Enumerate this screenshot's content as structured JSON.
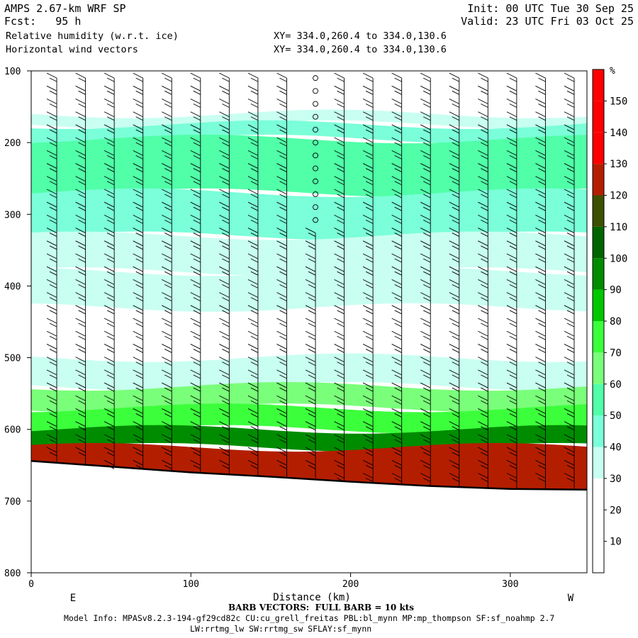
{
  "header": {
    "model": "AMPS 2.67-km WRF SP",
    "fcst": "Fcst:   95 h",
    "var1": "Relative humidity (w.r.t. ice)",
    "var2": "Horizontal wind vectors",
    "init": "Init: 00 UTC Tue 30 Sep 25",
    "valid": "Valid: 23 UTC Fri 03 Oct 25",
    "xy1": "XY= 334.0,260.4 to 334.0,130.6",
    "xy2": "XY= 334.0,260.4 to 334.0,130.6"
  },
  "footer": {
    "barb": "BARB VECTORS:  FULL BARB = 10 kts",
    "model_info": "Model Info: MPASv8.2.3-194-gf29cd82c CU:cu_grell_freitas PBL:bl_mynn MP:mp_thompson SF:sf_noahmp 2.7",
    "model_info2": "LW:rrtmg_lw SW:rrtmg_sw SFLAY:sf_mynn"
  },
  "chart_data": {
    "type": "heatmap",
    "title": "Relative humidity (w.r.t. ice)",
    "xlabel": "Distance (km)",
    "ylabel": "",
    "xlim": [
      0,
      348
    ],
    "ylim": [
      800,
      100
    ],
    "x_ticks": [
      0,
      100,
      200,
      300
    ],
    "y_ticks": [
      100,
      200,
      300,
      400,
      500,
      600,
      700,
      800
    ],
    "x_end_labels": {
      "left": "E",
      "right": "W"
    },
    "colorbar": {
      "unit": "%",
      "levels": [
        10,
        20,
        30,
        40,
        50,
        60,
        70,
        80,
        90,
        100,
        110,
        120,
        130,
        140,
        150
      ],
      "colors": [
        "#ffffff",
        "#ffffff",
        "#ffffff",
        "#c8fff0",
        "#7affd8",
        "#50ffa8",
        "#7aff7a",
        "#3cff3c",
        "#00c800",
        "#008c00",
        "#006400",
        "#3c5000",
        "#b41e00",
        "#ff0000",
        "#ff0000",
        "#ff0000"
      ]
    },
    "terrain_profile": [
      [
        0,
        644
      ],
      [
        50,
        652
      ],
      [
        100,
        660
      ],
      [
        150,
        666
      ],
      [
        200,
        673
      ],
      [
        250,
        679
      ],
      [
        300,
        683
      ],
      [
        348,
        684
      ]
    ],
    "rh_layers": [
      {
        "p_top": 160,
        "p_bot": 175,
        "rh": 35
      },
      {
        "p_top": 175,
        "p_bot": 195,
        "rh": 45
      },
      {
        "p_top": 195,
        "p_bot": 270,
        "rh": 55
      },
      {
        "p_top": 270,
        "p_bot": 330,
        "rh": 45
      },
      {
        "p_top": 330,
        "p_bot": 380,
        "rh": 35
      },
      {
        "p_top": 380,
        "p_bot": 430,
        "rh": 35
      },
      {
        "p_top": 500,
        "p_bot": 540,
        "rh": 35
      },
      {
        "p_top": 540,
        "p_bot": 570,
        "rh": 65
      },
      {
        "p_top": 570,
        "p_bot": 600,
        "rh": 75
      },
      {
        "p_top": 600,
        "p_bot": 625,
        "rh": 95
      },
      {
        "p_top": 625,
        "p_bot": 690,
        "rh": 125
      }
    ],
    "barb_columns_km": [
      16,
      34,
      52,
      70,
      88,
      106,
      124,
      142,
      160,
      178,
      196,
      214,
      232,
      250,
      268,
      286,
      304,
      322,
      340
    ]
  }
}
